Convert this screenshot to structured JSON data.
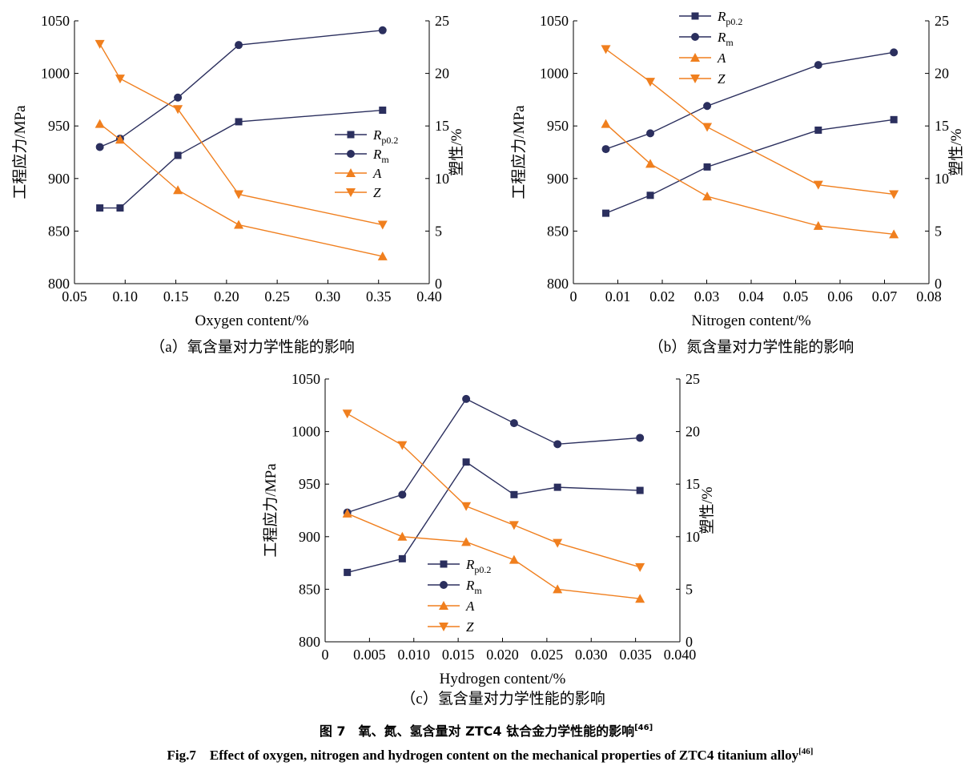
{
  "colors": {
    "blue": "#2b2f5e",
    "orange": "#f07f1e"
  },
  "figure": {
    "caption_cn": "图 7　氧、氮、氢含量对 ZTC4 钛合金力学性能的影响",
    "caption_cn_ref": "[46]",
    "caption_en": "Fig.7　Effect of oxygen, nitrogen and hydrogen content on the mechanical properties of ZTC4 titanium alloy",
    "caption_en_ref": "[46]"
  },
  "legend_labels": {
    "Rp02_main": "R",
    "Rp02_sub": "p0.2",
    "Rm_main": "R",
    "Rm_sub": "m",
    "A": "A",
    "Z": "Z"
  },
  "chart_data": [
    {
      "type": "line",
      "panel": "a",
      "caption": "（a）氧含量对力学性能的影响",
      "xlabel": "Oxygen content/%",
      "ylabel_left": "工程应力/MPa",
      "ylabel_right": "塑性/%",
      "xlim": [
        0.05,
        0.4
      ],
      "ylim_left": [
        800,
        1050
      ],
      "ylim_right": [
        0,
        25
      ],
      "x_ticks": [
        "0.05",
        "0.10",
        "0.15",
        "0.20",
        "0.25",
        "0.30",
        "0.35",
        "0.40"
      ],
      "y_left_ticks": [
        "800",
        "850",
        "900",
        "950",
        "1000",
        "1050"
      ],
      "y_right_ticks": [
        "0",
        "5",
        "10",
        "15",
        "20",
        "25"
      ],
      "legend_position": "right-middle",
      "series": [
        {
          "name": "Rp0.2",
          "axis": "left",
          "marker": "square",
          "color": "#2b2f5e",
          "x": [
            0.075,
            0.095,
            0.152,
            0.212,
            0.354
          ],
          "y": [
            872,
            872,
            922,
            954,
            965
          ]
        },
        {
          "name": "Rm",
          "axis": "left",
          "marker": "circle",
          "color": "#2b2f5e",
          "x": [
            0.075,
            0.095,
            0.152,
            0.212,
            0.354
          ],
          "y": [
            930,
            938,
            977,
            1027,
            1041
          ]
        },
        {
          "name": "A",
          "axis": "right",
          "marker": "triangle-up",
          "color": "#f07f1e",
          "x": [
            0.075,
            0.095,
            0.152,
            0.212,
            0.354
          ],
          "y": [
            15.2,
            13.7,
            8.9,
            5.6,
            2.6
          ]
        },
        {
          "name": "Z",
          "axis": "right",
          "marker": "triangle-down",
          "color": "#f07f1e",
          "x": [
            0.075,
            0.095,
            0.152,
            0.212,
            0.354
          ],
          "y": [
            22.8,
            19.5,
            16.6,
            8.5,
            5.6
          ]
        }
      ]
    },
    {
      "type": "line",
      "panel": "b",
      "caption": "（b）氮含量对力学性能的影响",
      "xlabel": "Nitrogen content/%",
      "ylabel_left": "工程应力/MPa",
      "ylabel_right": "塑性/%",
      "xlim": [
        0,
        0.08
      ],
      "ylim_left": [
        800,
        1050
      ],
      "ylim_right": [
        0,
        25
      ],
      "x_ticks": [
        "0",
        "0.01",
        "0.02",
        "0.03",
        "0.04",
        "0.05",
        "0.06",
        "0.07",
        "0.08"
      ],
      "y_left_ticks": [
        "800",
        "850",
        "900",
        "950",
        "1000",
        "1050"
      ],
      "y_right_ticks": [
        "0",
        "5",
        "10",
        "15",
        "20",
        "25"
      ],
      "legend_position": "top-left",
      "series": [
        {
          "name": "Rp0.2",
          "axis": "left",
          "marker": "square",
          "color": "#2b2f5e",
          "x": [
            0.0073,
            0.0173,
            0.0301,
            0.0551,
            0.0721
          ],
          "y": [
            867,
            884,
            911,
            946,
            956
          ]
        },
        {
          "name": "Rm",
          "axis": "left",
          "marker": "circle",
          "color": "#2b2f5e",
          "x": [
            0.0073,
            0.0173,
            0.0301,
            0.0551,
            0.0721
          ],
          "y": [
            928,
            943,
            969,
            1008,
            1020
          ]
        },
        {
          "name": "A",
          "axis": "right",
          "marker": "triangle-up",
          "color": "#f07f1e",
          "x": [
            0.0073,
            0.0173,
            0.0301,
            0.0551,
            0.0721
          ],
          "y": [
            15.2,
            11.4,
            8.3,
            5.5,
            4.7
          ]
        },
        {
          "name": "Z",
          "axis": "right",
          "marker": "triangle-down",
          "color": "#f07f1e",
          "x": [
            0.0073,
            0.0173,
            0.0301,
            0.0551,
            0.0721
          ],
          "y": [
            22.3,
            19.2,
            14.9,
            9.4,
            8.5
          ]
        }
      ]
    },
    {
      "type": "line",
      "panel": "c",
      "caption": "（c）氢含量对力学性能的影响",
      "xlabel": "Hydrogen content/%",
      "ylabel_left": "工程应力/MPa",
      "ylabel_right": "塑性/%",
      "xlim": [
        0,
        0.04
      ],
      "ylim_left": [
        800,
        1050
      ],
      "ylim_right": [
        0,
        25
      ],
      "x_ticks": [
        "0",
        "0.005",
        "0.010",
        "0.015",
        "0.020",
        "0.025",
        "0.030",
        "0.035",
        "0.040"
      ],
      "y_left_ticks": [
        "800",
        "850",
        "900",
        "950",
        "1000",
        "1050"
      ],
      "y_right_ticks": [
        "0",
        "5",
        "10",
        "15",
        "20",
        "25"
      ],
      "legend_position": "lower-left",
      "series": [
        {
          "name": "Rp0.2",
          "axis": "left",
          "marker": "square",
          "color": "#2b2f5e",
          "x": [
            0.0025,
            0.0087,
            0.0159,
            0.0213,
            0.0262,
            0.0355
          ],
          "y": [
            866,
            879,
            971,
            940,
            947,
            944
          ]
        },
        {
          "name": "Rm",
          "axis": "left",
          "marker": "circle",
          "color": "#2b2f5e",
          "x": [
            0.0025,
            0.0087,
            0.0159,
            0.0213,
            0.0262,
            0.0355
          ],
          "y": [
            923,
            940,
            1031,
            1008,
            988,
            994
          ]
        },
        {
          "name": "A",
          "axis": "right",
          "marker": "triangle-up",
          "color": "#f07f1e",
          "x": [
            0.0025,
            0.0087,
            0.0159,
            0.0213,
            0.0262,
            0.0355
          ],
          "y": [
            12.2,
            10.0,
            9.5,
            7.8,
            5.0,
            4.1
          ]
        },
        {
          "name": "Z",
          "axis": "right",
          "marker": "triangle-down",
          "color": "#f07f1e",
          "x": [
            0.0025,
            0.0087,
            0.0159,
            0.0213,
            0.0262,
            0.0355
          ],
          "y": [
            21.7,
            18.7,
            12.9,
            11.1,
            9.4,
            7.1
          ]
        }
      ]
    }
  ]
}
